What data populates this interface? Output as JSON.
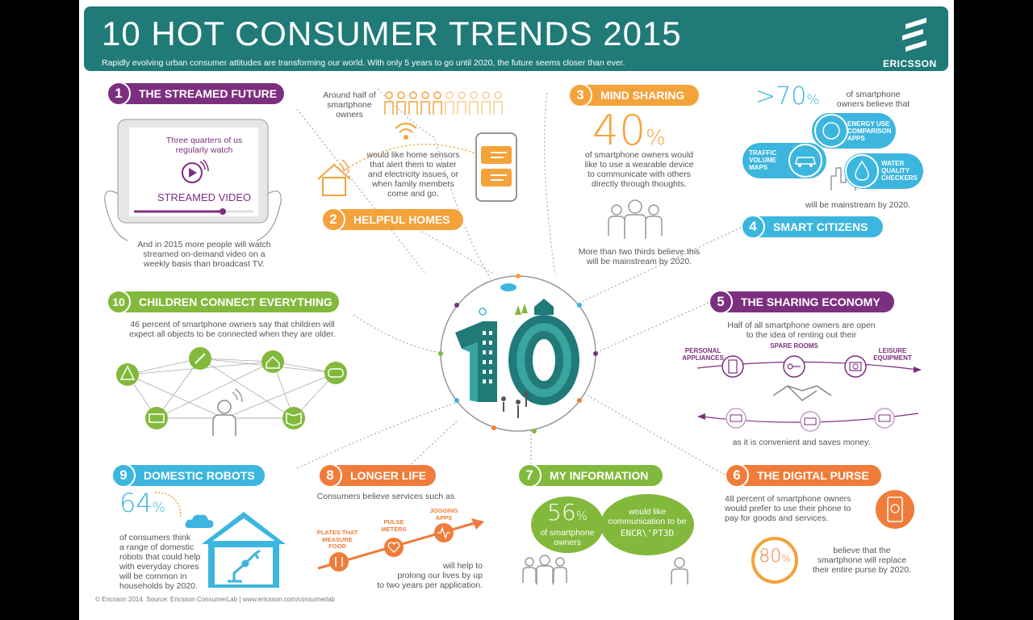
{
  "header": {
    "title": "10 HOT CONSUMER TRENDS 2015",
    "subtitle": "Rapidly evolving urban consumer attitudes are transforming our world. With only 5 years to go until 2020, the future seems closer than ever.",
    "logo": "ERICSSON",
    "color": "#1f7a78"
  },
  "t1": {
    "num": "1",
    "title": "THE STREAMED FUTURE",
    "tablet_line1": "Three quarters of us",
    "tablet_line2": "regularly watch",
    "tablet_label": "STREAMED VIDEO",
    "text_line1": "And in 2015 more people will watch",
    "text_line2": "streamed on-demand video on a",
    "text_line3": "weekly basis than broadcast TV."
  },
  "t2": {
    "num": "2",
    "title": "HELPFUL HOMES",
    "top_line1": "Around half of",
    "top_line2": "smartphone",
    "top_line3": "owners",
    "text_line1": "would like home sensors",
    "text_line2": "that alert them to water",
    "text_line3": "and electricity issues, or",
    "text_line4": "when family members",
    "text_line5": "come and go."
  },
  "t3": {
    "num": "3",
    "title": "MIND SHARING",
    "stat": "40",
    "stat_unit": "%",
    "text_line1": "of smartphone owners would",
    "text_line2": "like to use a wearable device",
    "text_line3": "to communicate with others",
    "text_line4": "directly through thoughts.",
    "bottom_line1": "More than two thirds believe this",
    "bottom_line2": "will be mainstream by 2020."
  },
  "t4": {
    "num": "4",
    "title": "SMART CITIZENS",
    "stat": ">70",
    "stat_unit": "%",
    "stat_text_line1": "of smartphone",
    "stat_text_line2": "owners believe that",
    "bubble_energy": "ENERGY USE COMPARISON APPS",
    "bubble_traffic": "TRAFFIC VOLUME MAPS",
    "bubble_water": "WATER QUALITY CHECKERS",
    "bottom": "will be mainstream by 2020."
  },
  "t5": {
    "num": "5",
    "title": "THE SHARING ECONOMY",
    "text_line1": "Half of all smartphone owners are open",
    "text_line2": "to the idea of renting out their",
    "label_personal": "PERSONAL APPLIANCES",
    "label_spare": "SPARE ROOMS",
    "label_leisure": "LEISURE EQUIPMENT",
    "bottom": "as it is convenient and saves money."
  },
  "t6": {
    "num": "6",
    "title": "THE DIGITAL PURSE",
    "text_line1": "48 percent of smartphone owners",
    "text_line2": "would prefer to use their phone to",
    "text_line3": "pay for goods and services.",
    "stat": "80",
    "stat_unit": "%",
    "stat_line1": "believe that the",
    "stat_line2": "smartphone will replace",
    "stat_line3": "their entire purse by 2020."
  },
  "t7": {
    "num": "7",
    "title": "MY INFORMATION",
    "stat": "56",
    "stat_unit": "%",
    "stat_line1": "of smartphone",
    "stat_line2": "owners",
    "bubble_line1": "would like",
    "bubble_line2": "communication to be",
    "bubble_encrypted": "ENCR\\'PT3D"
  },
  "t8": {
    "num": "8",
    "title": "LONGER LIFE",
    "text_top": "Consumers believe services such as",
    "label_plates": "PLATES THAT MEASURE FOOD",
    "label_pulse": "PULSE METERS",
    "label_jogging": "JOGGING APPS",
    "text_line1": "will help to",
    "text_line2": "prolong our lives by up",
    "text_line3": "to two years per application."
  },
  "t9": {
    "num": "9",
    "title": "DOMESTIC ROBOTS",
    "stat": "64",
    "stat_unit": "%",
    "text_line1": "of consumers think",
    "text_line2": "a range of domestic",
    "text_line3": "robots that could help",
    "text_line4": "with everyday chores",
    "text_line5": "will be common in",
    "text_line6": "households by 2020."
  },
  "t10": {
    "num": "10",
    "title": "CHILDREN CONNECT EVERYTHING",
    "text_line1": "46 percent of smartphone owners say that children will",
    "text_line2": "expect all objects to be connected when they are older."
  },
  "footer": "© Ericsson 2014. Source: Ericsson ConsumerLab | www.ericsson.com/consumerlab",
  "colors": {
    "purple": "#7d2f7f",
    "orange": "#f4a23a",
    "cyan": "#3cb6de",
    "green": "#82b93c",
    "darkorange": "#ef7c3a",
    "teal": "#1f7a78"
  },
  "icons": [
    "ericsson-logo-icon",
    "tablet-icon",
    "play-icon",
    "wifi-icon",
    "house-icon",
    "phone-icon",
    "people-icon",
    "brain-icon",
    "car-icon",
    "drop-icon",
    "city-icon",
    "fridge-icon",
    "key-icon",
    "camera-icon",
    "handshake-icon",
    "money-icon",
    "wallet-icon",
    "tree-icon",
    "pencil-icon",
    "gamepad-icon",
    "book-icon",
    "child-icon",
    "cloud-icon",
    "robot-arm-icon",
    "plate-icon",
    "heart-icon",
    "pulse-icon",
    "person-icon"
  ]
}
